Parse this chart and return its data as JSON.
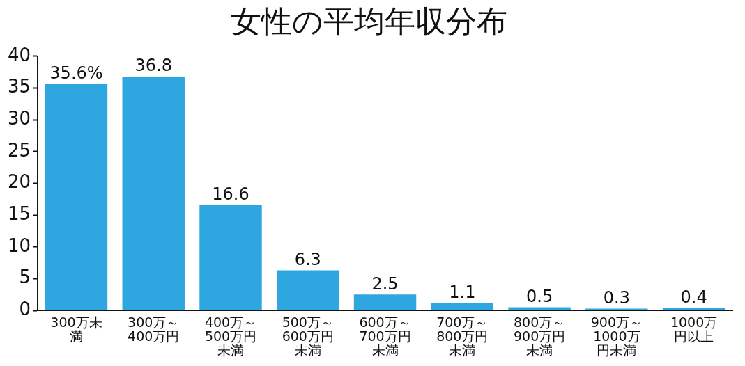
{
  "chart_data": {
    "type": "bar",
    "title": "女性の平均年収分布",
    "categories": [
      "300万未満",
      "300万～400万円",
      "400万～500万円未満",
      "500万～600万円未満",
      "600万～700万円未満",
      "700万～800万円未満",
      "800万～900万円未満",
      "900万～1000万円未満",
      "1000万円以上"
    ],
    "values": [
      35.6,
      36.8,
      16.6,
      6.3,
      2.5,
      1.1,
      0.5,
      0.3,
      0.4
    ],
    "value_labels": [
      "35.6%",
      "36.8",
      "16.6",
      "6.3",
      "2.5",
      "1.1",
      "0.5",
      "0.3",
      "0.4"
    ],
    "color": "#2ea7e0",
    "ylim": [
      0,
      40
    ],
    "yticks": [
      0,
      5,
      10,
      15,
      20,
      25,
      30,
      35,
      40
    ],
    "grid": false
  }
}
